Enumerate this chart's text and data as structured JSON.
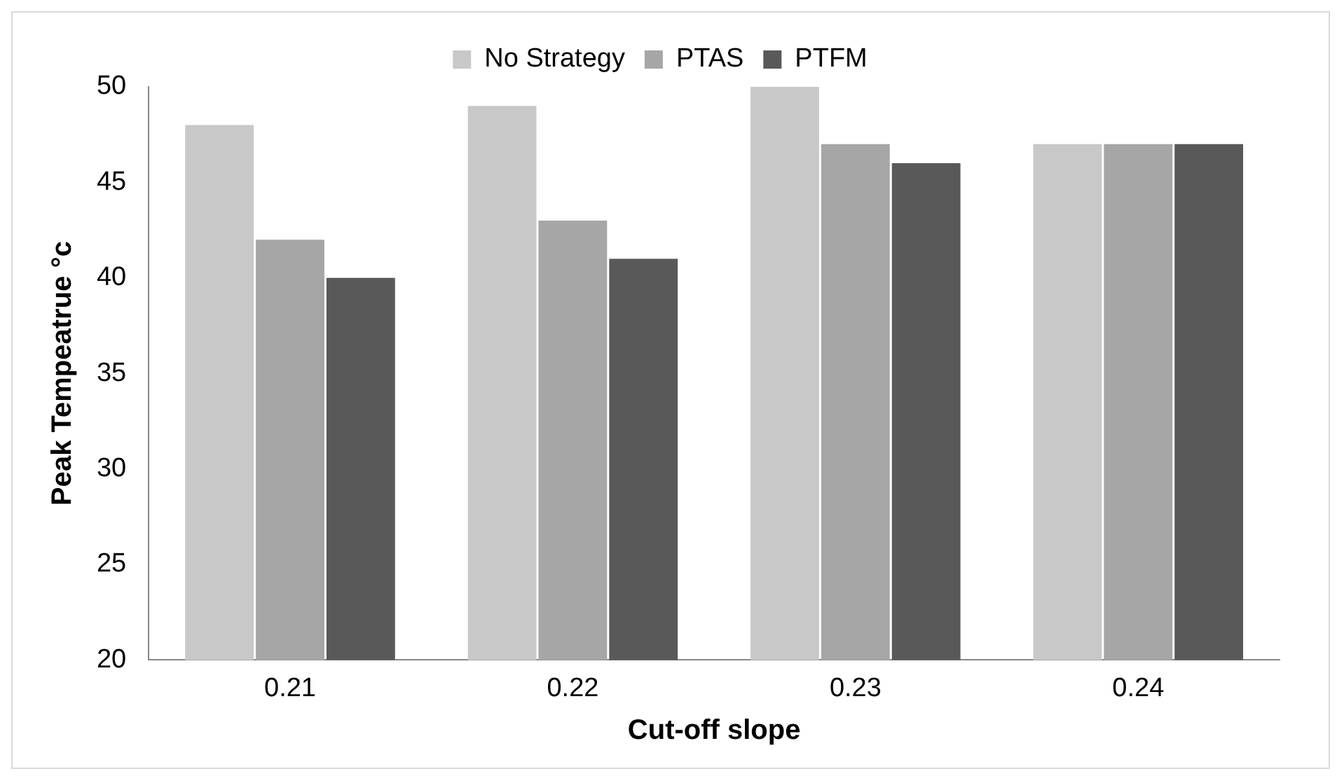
{
  "chart_data": {
    "type": "bar",
    "xlabel": "Cut-off slope",
    "ylabel": "Peak Tempeatrue °c",
    "categories": [
      "0.21",
      "0.22",
      "0.23",
      "0.24"
    ],
    "series": [
      {
        "name": "No Strategy",
        "color": "#c8c8c8",
        "values": [
          48,
          49,
          50,
          47
        ]
      },
      {
        "name": "PTAS",
        "color": "#a6a6a6",
        "values": [
          42,
          43,
          47,
          47
        ]
      },
      {
        "name": "PTFM",
        "color": "#595959",
        "values": [
          40,
          41,
          46,
          47
        ]
      }
    ],
    "ylim": [
      20,
      50
    ],
    "yticks": [
      20,
      25,
      30,
      35,
      40,
      45,
      50
    ],
    "grid": false,
    "legend": "top"
  }
}
